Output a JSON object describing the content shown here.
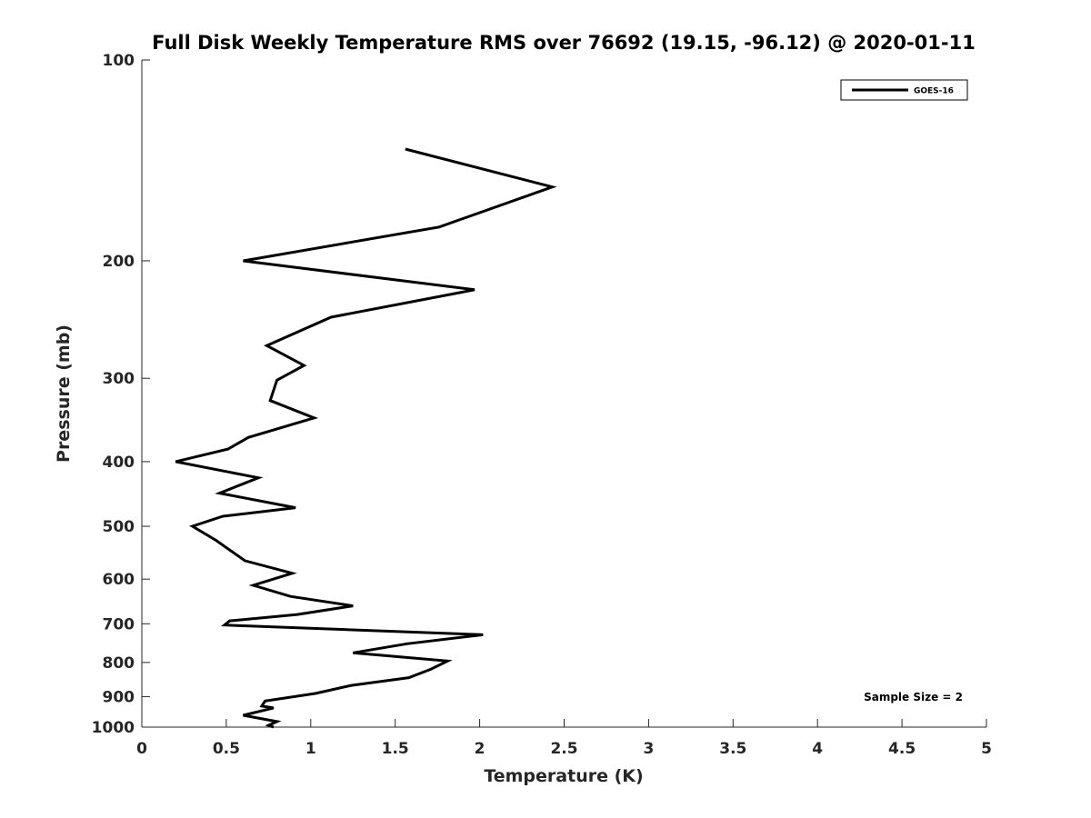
{
  "chart_data": {
    "type": "line",
    "title": "Full Disk Weekly Temperature RMS over 76692 (19.15, -96.12) @ 2020-01-11",
    "xlabel": "Temperature (K)",
    "ylabel": "Pressure (mb)",
    "xlim": [
      0,
      5
    ],
    "ylim": [
      100,
      1000
    ],
    "y_scale": "log",
    "y_reversed": true,
    "grid": false,
    "legend_position": "top-right",
    "x_ticks": [
      "0",
      "0.5",
      "1",
      "1.5",
      "2",
      "2.5",
      "3",
      "3.5",
      "4",
      "4.5",
      "5"
    ],
    "y_ticks": [
      "100",
      "200",
      "300",
      "400",
      "500",
      "600",
      "700",
      "800",
      "900",
      "1000"
    ],
    "series": [
      {
        "name": "GOES-16",
        "color": "#000000",
        "points": [
          [
            1.56,
            136
          ],
          [
            2.43,
            155
          ],
          [
            1.76,
            178
          ],
          [
            0.6,
            200
          ],
          [
            1.97,
            221
          ],
          [
            1.12,
            243
          ],
          [
            0.74,
            268
          ],
          [
            0.96,
            287
          ],
          [
            0.8,
            302
          ],
          [
            0.76,
            324
          ],
          [
            1.02,
            344
          ],
          [
            0.63,
            368
          ],
          [
            0.51,
            383
          ],
          [
            0.2,
            400
          ],
          [
            0.69,
            423
          ],
          [
            0.46,
            446
          ],
          [
            0.91,
            469
          ],
          [
            0.48,
            483
          ],
          [
            0.3,
            500
          ],
          [
            0.44,
            525
          ],
          [
            0.61,
            563
          ],
          [
            0.89,
            588
          ],
          [
            0.66,
            613
          ],
          [
            0.88,
            637
          ],
          [
            1.25,
            658
          ],
          [
            0.92,
            678
          ],
          [
            0.52,
            693
          ],
          [
            0.49,
            703
          ],
          [
            2.02,
            727
          ],
          [
            1.57,
            750
          ],
          [
            1.25,
            774
          ],
          [
            1.81,
            796
          ],
          [
            1.71,
            819
          ],
          [
            1.58,
            843
          ],
          [
            1.24,
            866
          ],
          [
            1.03,
            890
          ],
          [
            0.73,
            914
          ],
          [
            0.71,
            930
          ],
          [
            0.78,
            936
          ],
          [
            0.6,
            960
          ],
          [
            0.8,
            981
          ],
          [
            0.75,
            994
          ],
          [
            0.78,
            1000
          ]
        ]
      }
    ],
    "annotations": [
      {
        "text": "Sample Size = 2",
        "position": "bottom-right"
      }
    ]
  }
}
